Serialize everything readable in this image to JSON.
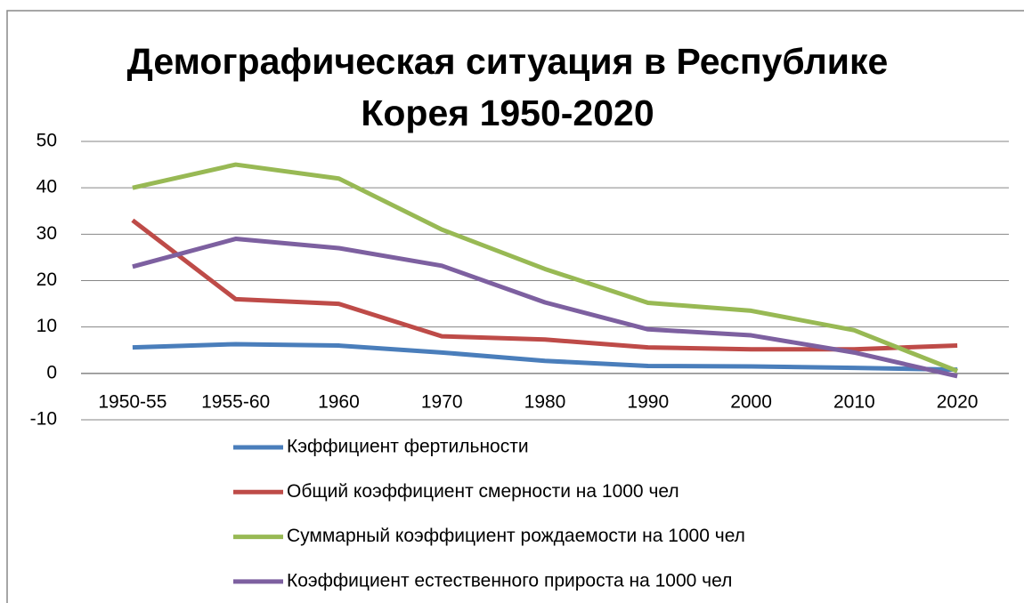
{
  "chart_data": {
    "type": "line",
    "title": "Демографическая ситуация в Республике Корея 1950-2020",
    "categories": [
      "1950-55",
      "1955-60",
      "1960",
      "1970",
      "1980",
      "1990",
      "2000",
      "2010",
      "2020"
    ],
    "series": [
      {
        "name": "Кэффициент фертильности",
        "color": "#4a7ebb",
        "values": [
          5.6,
          6.3,
          6,
          4.5,
          2.7,
          1.6,
          1.5,
          1.2,
          0.8
        ]
      },
      {
        "name": "Общий коэффициент смерности на 1000 чел",
        "color": "#be4b48",
        "values": [
          33,
          16,
          15,
          8,
          7.3,
          5.6,
          5.2,
          5.2,
          6
        ]
      },
      {
        "name": "Суммарный коэффициент рождаемости на 1000 чел",
        "color": "#98b954",
        "values": [
          40,
          45,
          42,
          31,
          22.5,
          15.2,
          13.5,
          9.3,
          0.5
        ]
      },
      {
        "name": "Коэффициент естественного прироста на 1000 чел",
        "color": "#7d60a0",
        "values": [
          23,
          29,
          27,
          23.2,
          15.3,
          9.5,
          8.2,
          4.5,
          -0.6
        ]
      }
    ],
    "ylim": [
      -10,
      50
    ],
    "yticks": [
      -10,
      0,
      10,
      20,
      30,
      40,
      50
    ],
    "grid": true,
    "legend": "bottom"
  }
}
